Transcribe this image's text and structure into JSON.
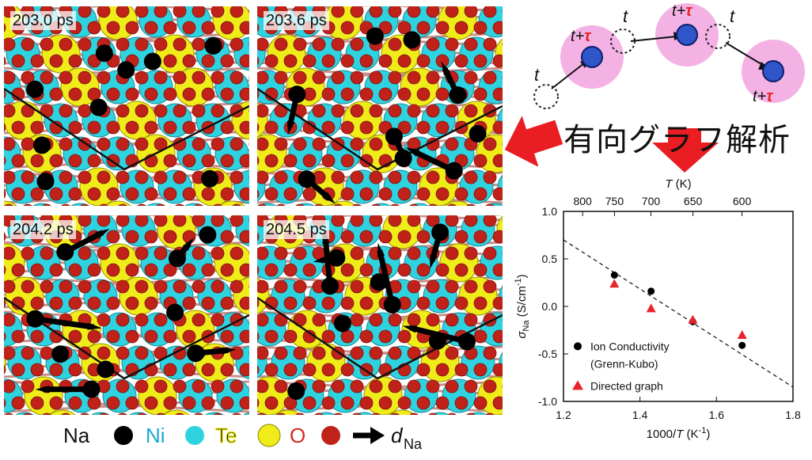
{
  "panels": [
    {
      "time_label": "203.0 ps"
    },
    {
      "time_label": "203.6 ps"
    },
    {
      "time_label": "204.2 ps"
    },
    {
      "time_label": "204.5 ps"
    }
  ],
  "colors": {
    "Na": "#000000",
    "Ni": "#2fd3e0",
    "Te": "#f0ec1a",
    "O": "#c0221a",
    "Ni_text": "#1aa7d6",
    "Te_text": "#111111",
    "O_text": "#d62a20",
    "pink": "#f4b2e4",
    "blue_atom": "#2f55c9",
    "tau_red": "#e8232a",
    "big_arrow": "#ea1e22"
  },
  "legend": {
    "Na": "Na",
    "Ni": "Ni",
    "Te": "Te",
    "O": "O",
    "d_main": "d",
    "d_sub": "Na"
  },
  "schematic": {
    "t": "t",
    "plus": "+",
    "tau": "τ"
  },
  "japanese_title": "有向グラフ解析",
  "chart_data": {
    "type": "scatter",
    "x_label_main": "1000/",
    "x_label_var": "T",
    "x_label_unit": "(K",
    "x_label_exp": "-1",
    "x_label_close": ")",
    "top_axis_label_var": "T",
    "top_axis_label_unit": "(K)",
    "y_label_main": "σ",
    "y_label_sub": "Na",
    "y_label_unit": "(S/cm",
    "y_label_exp": "-1",
    "y_label_close": ")",
    "xlim": [
      1.2,
      1.8
    ],
    "ylim": [
      -1.0,
      1.0
    ],
    "x_ticks": [
      "1.2",
      "1.4",
      "1.6",
      "1.8"
    ],
    "y_ticks": [
      "1.0",
      "0.5",
      "0.0",
      "-0.5",
      "-1.0"
    ],
    "top_ticks": [
      {
        "label": "800",
        "T": 800
      },
      {
        "label": "750",
        "T": 750
      },
      {
        "label": "700",
        "T": 700
      },
      {
        "label": "650",
        "T": 650
      },
      {
        "label": "600",
        "T": 600
      }
    ],
    "series": [
      {
        "name": "Ion Conductivity",
        "name2": "(Grenn-Kubo)",
        "marker": "circle",
        "points": [
          [
            1.333,
            0.33
          ],
          [
            1.429,
            0.16
          ],
          [
            1.538,
            -0.16
          ],
          [
            1.667,
            -0.41
          ]
        ]
      },
      {
        "name": "Directed graph",
        "marker": "triangle",
        "points": [
          [
            1.333,
            0.24
          ],
          [
            1.429,
            -0.02
          ],
          [
            1.538,
            -0.14
          ],
          [
            1.667,
            -0.3
          ]
        ]
      }
    ],
    "fit_line": [
      [
        1.2,
        0.7
      ],
      [
        1.8,
        -0.85
      ]
    ]
  }
}
